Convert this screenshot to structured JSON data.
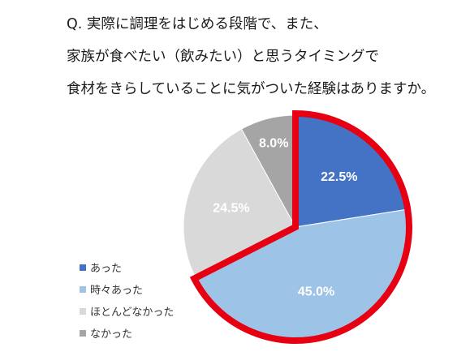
{
  "question": {
    "lines": [
      "Q. 実際に調理をはじめる段階で、また、",
      "家族が食べたい（飲みたい）と思うタイミングで",
      "食材をきらしていることに気がついた経験はありますか。"
    ]
  },
  "chart_data": {
    "type": "pie",
    "title": "",
    "slices": [
      {
        "label": "あった",
        "value": 22.5,
        "display": "22.5%",
        "color": "#4472C4",
        "label_color": "#ffffff",
        "highlighted": true
      },
      {
        "label": "時々あった",
        "value": 45.0,
        "display": "45.0%",
        "color": "#9DC3E6",
        "label_color": "#ffffff",
        "highlighted": true
      },
      {
        "label": "ほとんどなかった",
        "value": 24.5,
        "display": "24.5%",
        "color": "#D9D9D9",
        "label_color": "#ffffff",
        "highlighted": false
      },
      {
        "label": "なかった",
        "value": 8.0,
        "display": "8.0%",
        "color": "#A5A5A5",
        "label_color": "#ffffff",
        "highlighted": false
      }
    ],
    "start_angle_deg": 0,
    "direction": "clockwise",
    "highlight_color": "#E60012",
    "legend_position": "left"
  }
}
